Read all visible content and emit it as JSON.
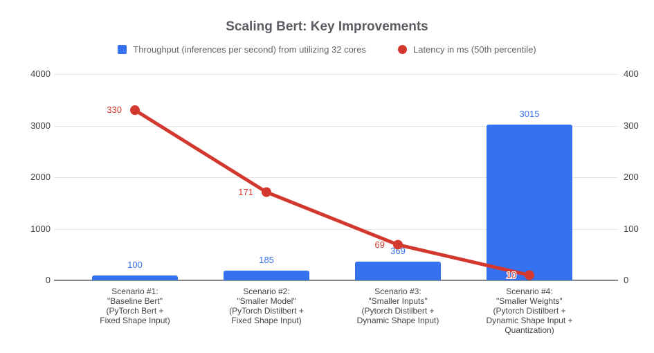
{
  "chart_data": {
    "type": "combo-bar-line",
    "title": "Scaling Bert: Key Improvements",
    "legend_position": "top",
    "grid": true,
    "categories": [
      [
        "Scenario #1:",
        "\"Baseline Bert\"",
        "(PyTorch Bert +",
        "Fixed Shape Input)"
      ],
      [
        "Scenario #2:",
        "\"Smaller Model\"",
        "(PyTorch Distilbert +",
        "Fixed Shape Input)"
      ],
      [
        "Scenario #3:",
        "\"Smaller Inputs\"",
        "(Pytorch Distilbert +",
        "Dynamic Shape Input)"
      ],
      [
        "Scenario #4:",
        "\"Smaller Weights\"",
        "(Pytorch Distilbert +",
        "Dynamic Shape Input +",
        "Quantization)"
      ]
    ],
    "series": [
      {
        "name": "Throughput (inferences per second) from utilizing 32 cores",
        "type": "bar",
        "axis": "left",
        "color": "#3671f0",
        "values": [
          100,
          185,
          369,
          3015
        ]
      },
      {
        "name": "Latency in ms (50th percentile)",
        "type": "line",
        "axis": "right",
        "color": "#d3382f",
        "values": [
          330,
          171,
          69,
          10
        ]
      }
    ],
    "axes": {
      "left": {
        "min": 0,
        "max": 4000,
        "ticks": [
          0,
          1000,
          2000,
          3000,
          4000
        ]
      },
      "right": {
        "min": 0,
        "max": 400,
        "ticks": [
          0,
          100,
          200,
          300,
          400
        ]
      }
    }
  }
}
